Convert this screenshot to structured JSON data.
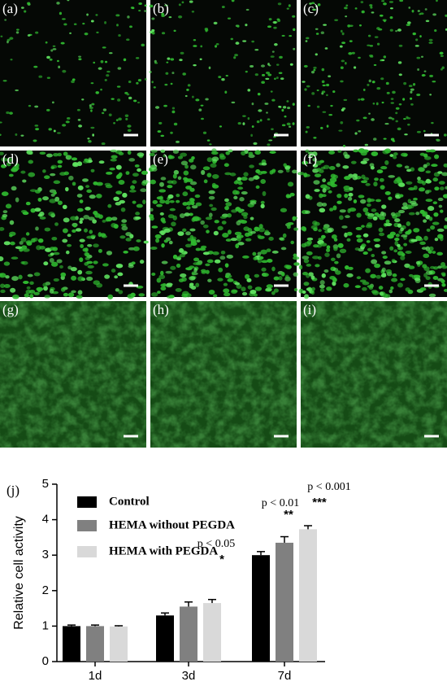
{
  "panels": [
    "(a)",
    "(b)",
    "(c)",
    "(d)",
    "(e)",
    "(f)",
    "(g)",
    "(h)",
    "(i)"
  ],
  "chart_data": {
    "type": "bar",
    "label": "(j)",
    "y_label": "Relative cell activity",
    "categories": [
      "1d",
      "3d",
      "7d"
    ],
    "series": [
      {
        "name": "Control",
        "color": "#000000",
        "values": [
          1.0,
          1.3,
          3.0
        ],
        "errors": [
          0.03,
          0.07,
          0.1
        ]
      },
      {
        "name": "HEMA without PEGDA",
        "color": "#808080",
        "values": [
          1.0,
          1.55,
          3.35
        ],
        "errors": [
          0.03,
          0.13,
          0.17
        ]
      },
      {
        "name": "HEMA with PEGDA",
        "color": "#d9d9d9",
        "values": [
          0.99,
          1.65,
          3.73
        ],
        "errors": [
          0.02,
          0.1,
          0.1
        ]
      }
    ],
    "ylim": [
      0,
      5
    ],
    "yticks": [
      0,
      1,
      2,
      3,
      4,
      5
    ],
    "annotations": [
      {
        "p": "p < 0.05",
        "stars": "*"
      },
      {
        "p": "p < 0.01",
        "stars": "**"
      },
      {
        "p": "p < 0.001",
        "stars": "***"
      }
    ]
  }
}
